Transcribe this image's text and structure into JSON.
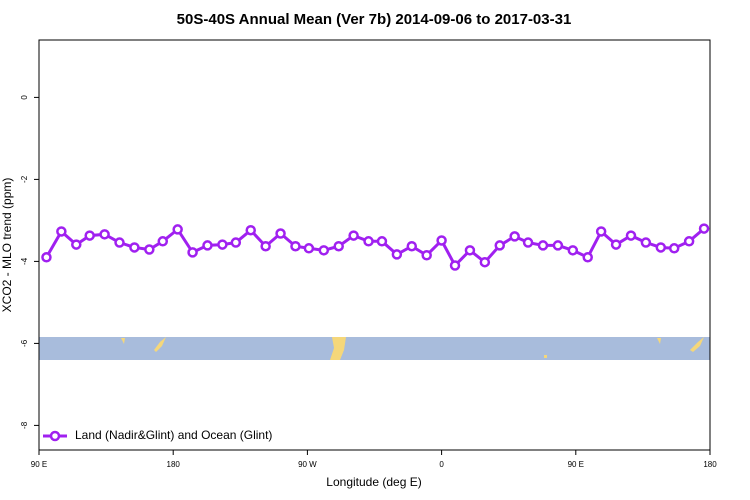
{
  "chart_data": {
    "type": "line",
    "title": "50S-40S Annual Mean (Ver 7b)   2014-09-06 to 2017-03-31",
    "x_label": "Longitude (deg E)",
    "y_label": "XCO2 - MLO trend (ppm)",
    "xlim": [
      90,
      540
    ],
    "ylim": [
      -8.6,
      1.4
    ],
    "xticks": [
      {
        "value": 90,
        "label": "90 E"
      },
      180,
      {
        "value": 270,
        "label": "90 W"
      },
      {
        "value": 360,
        "label": "0"
      },
      {
        "value": 450,
        "label": "90 E"
      },
      {
        "value": 540,
        "label": "180"
      }
    ],
    "yticks": [
      0,
      -2,
      -4,
      -6,
      -8
    ],
    "legend": "bottom-left",
    "series": [
      {
        "name": "Land (Nadir&Glint) and Ocean (Glint)",
        "color": "#a020f0",
        "x": [
          95,
          105,
          115,
          124,
          134,
          144,
          154,
          164,
          173,
          183,
          193,
          203,
          213,
          222,
          232,
          242,
          252,
          262,
          271,
          281,
          291,
          301,
          311,
          320,
          330,
          340,
          350,
          360,
          369,
          379,
          389,
          399,
          409,
          418,
          428,
          438,
          448,
          458,
          467,
          477,
          487,
          497,
          507,
          516,
          526,
          536
        ],
        "values": [
          -3.9,
          -3.27,
          -3.59,
          -3.37,
          -3.34,
          -3.54,
          -3.66,
          -3.71,
          -3.51,
          -3.22,
          -3.78,
          -3.61,
          -3.59,
          -3.54,
          -3.24,
          -3.63,
          -3.32,
          -3.63,
          -3.68,
          -3.73,
          -3.63,
          -3.37,
          -3.51,
          -3.51,
          -3.83,
          -3.63,
          -3.85,
          -3.49,
          -4.1,
          -3.73,
          -4.02,
          -3.61,
          -3.39,
          -3.54,
          -3.61,
          -3.61,
          -3.73,
          -3.9,
          -3.27,
          -3.59,
          -3.37,
          -3.54,
          -3.66,
          -3.68,
          -3.51,
          -3.2
        ]
      }
    ]
  }
}
